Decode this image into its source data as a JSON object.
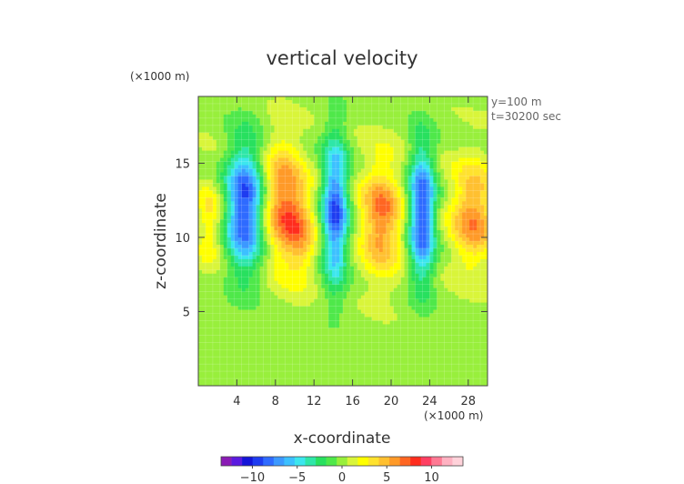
{
  "chart_data": {
    "type": "heatmap",
    "title": "vertical velocity",
    "xlabel": "x-coordinate",
    "ylabel": "z-coordinate",
    "x_unit": "(×1000 m)",
    "y_unit": "(×1000 m)",
    "annotations": [
      "y=100 m",
      "t=30200 sec"
    ],
    "xlim": [
      0,
      30
    ],
    "ylim": [
      0,
      19.5
    ],
    "x_ticks": [
      4,
      8,
      12,
      16,
      20,
      24,
      28
    ],
    "y_ticks": [
      5,
      10,
      15
    ],
    "x_tick_labels": [
      "4",
      "8",
      "12",
      "16",
      "20",
      "24",
      "28"
    ],
    "y_tick_labels": [
      "5",
      "10",
      "15"
    ],
    "grid": true,
    "colorbar": {
      "placement": "bottom",
      "ticks": [
        -10,
        -5,
        0,
        5,
        10
      ],
      "tick_labels": [
        "−10",
        "−5",
        "0",
        "5",
        "10"
      ],
      "min": -13.5,
      "max": 13.5,
      "colors": [
        "#8a1bb5",
        "#5b1ae0",
        "#1414d8",
        "#1e3cf0",
        "#2f6bff",
        "#3c99ff",
        "#3cc0ff",
        "#3ce6ee",
        "#2fe6a8",
        "#28e05f",
        "#4fe84a",
        "#98ef3c",
        "#d9f53a",
        "#ffff00",
        "#ffe22e",
        "#ffc030",
        "#ff9a28",
        "#ff6622",
        "#ff2d1e",
        "#ff3f62",
        "#ff7a94",
        "#ffb2c2",
        "#ffd2da"
      ]
    },
    "field": {
      "background": 0.2,
      "features": [
        {
          "x": 4.8,
          "z": 12.0,
          "sx": 1.35,
          "sz": 3.0,
          "w": -9.5
        },
        {
          "x": 8.8,
          "z": 12.3,
          "sx": 1.4,
          "sz": 2.8,
          "w": 6.5
        },
        {
          "x": 10.7,
          "z": 10.3,
          "sx": 1.1,
          "sz": 2.2,
          "w": 4.0
        },
        {
          "x": 14.2,
          "z": 11.8,
          "sx": 0.95,
          "sz": 3.4,
          "w": -9.0
        },
        {
          "x": 19.0,
          "z": 11.3,
          "sx": 1.5,
          "sz": 2.6,
          "w": 6.5
        },
        {
          "x": 23.2,
          "z": 11.6,
          "sx": 0.95,
          "sz": 3.2,
          "w": -9.5
        },
        {
          "x": 28.5,
          "z": 11.5,
          "sx": 1.6,
          "sz": 2.4,
          "w": 6.0
        },
        {
          "x": 1.2,
          "z": 11.0,
          "sx": 0.9,
          "sz": 2.0,
          "w": 3.0
        }
      ]
    }
  }
}
